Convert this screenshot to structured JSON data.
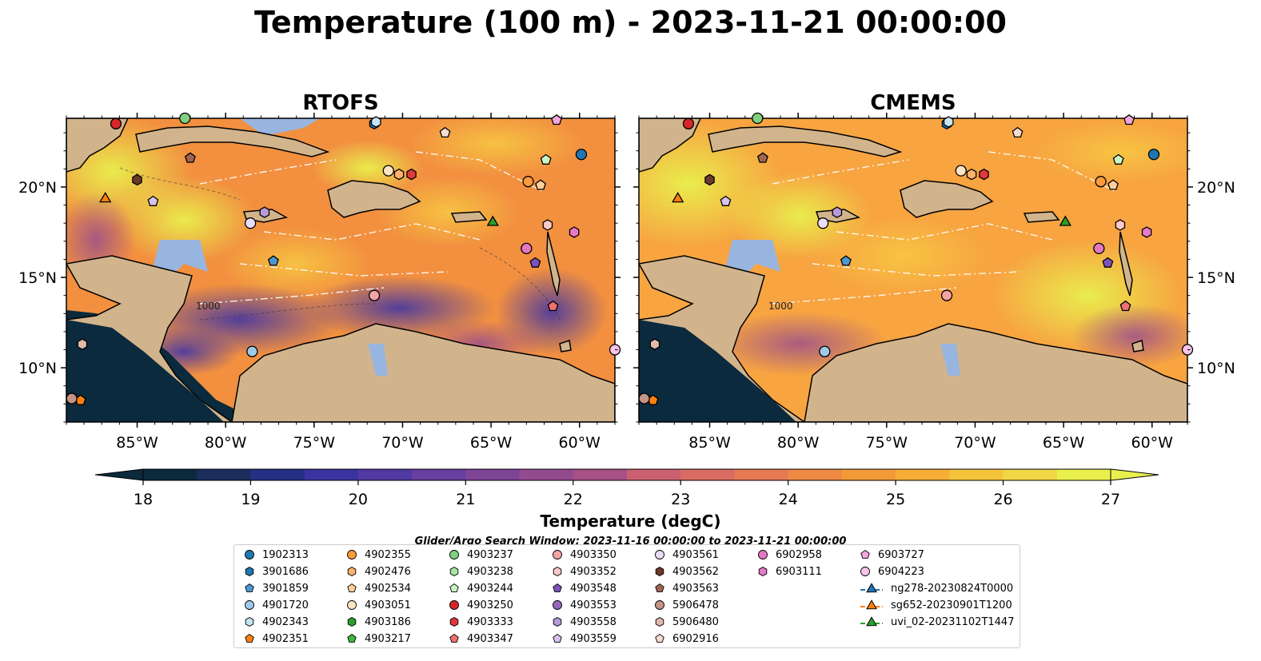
{
  "title": "Temperature (100 m) - 2023-11-21 00:00:00",
  "panels": [
    {
      "title": "RTOFS"
    },
    {
      "title": "CMEMS"
    }
  ],
  "map": {
    "lon_range": [
      -89,
      -58
    ],
    "lat_range": [
      7,
      23.8
    ],
    "lon_ticks": [
      "85°W",
      "80°W",
      "75°W",
      "70°W",
      "65°W",
      "60°W"
    ],
    "lat_ticks": [
      "20°N",
      "15°N",
      "10°N"
    ],
    "land_color": "#d2b48c",
    "shelf_color": "#98b5e0",
    "contour_labels": [
      "1000",
      "1000"
    ]
  },
  "colorbar": {
    "label": "Temperature (degC)",
    "ticks": [
      "18",
      "19",
      "20",
      "21",
      "22",
      "23",
      "24",
      "25",
      "26",
      "27"
    ],
    "min": 18,
    "max": 27,
    "extend": "both",
    "colormap": "thermal"
  },
  "search_window": "Glider/Argo Search Window: 2023-11-16 00:00:00 to 2023-11-21 00:00:00",
  "legend": {
    "items": [
      {
        "label": "1902313",
        "marker": "circle",
        "color": "#1f77b4"
      },
      {
        "label": "3901686",
        "marker": "hexagon",
        "color": "#1f77b4"
      },
      {
        "label": "3901859",
        "marker": "pentagon",
        "color": "#4e97cf"
      },
      {
        "label": "4901720",
        "marker": "circle",
        "color": "#9ecae9"
      },
      {
        "label": "4902343",
        "marker": "hexagon",
        "color": "#c6e4f7"
      },
      {
        "label": "4902351",
        "marker": "pentagon",
        "color": "#ff7f0e"
      },
      {
        "label": "4902355",
        "marker": "circle",
        "color": "#ff9a3c"
      },
      {
        "label": "4902476",
        "marker": "hexagon",
        "color": "#ffb26b"
      },
      {
        "label": "4902534",
        "marker": "pentagon",
        "color": "#ffcf9a"
      },
      {
        "label": "4903051",
        "marker": "circle",
        "color": "#ffe4c4"
      },
      {
        "label": "4903186",
        "marker": "hexagon",
        "color": "#2ca02c"
      },
      {
        "label": "4903217",
        "marker": "pentagon",
        "color": "#3cb83c"
      },
      {
        "label": "4903237",
        "marker": "circle",
        "color": "#7fd17f"
      },
      {
        "label": "4903238",
        "marker": "hexagon",
        "color": "#a8e5a0"
      },
      {
        "label": "4903244",
        "marker": "pentagon",
        "color": "#ccf5c4"
      },
      {
        "label": "4903250",
        "marker": "circle",
        "color": "#d62728"
      },
      {
        "label": "4903333",
        "marker": "hexagon",
        "color": "#e0393b"
      },
      {
        "label": "4903347",
        "marker": "pentagon",
        "color": "#ee7070"
      },
      {
        "label": "4903350",
        "marker": "circle",
        "color": "#f5a3a3"
      },
      {
        "label": "4903352",
        "marker": "hexagon",
        "color": "#fbc8c8"
      },
      {
        "label": "4903548",
        "marker": "pentagon",
        "color": "#7b52b9"
      },
      {
        "label": "4903553",
        "marker": "circle",
        "color": "#9467bd"
      },
      {
        "label": "4903558",
        "marker": "hexagon",
        "color": "#b79ad8"
      },
      {
        "label": "4903559",
        "marker": "pentagon",
        "color": "#d6c2ee"
      },
      {
        "label": "4903561",
        "marker": "circle",
        "color": "#ebdcf8"
      },
      {
        "label": "4903562",
        "marker": "hexagon",
        "color": "#6b3a2a"
      },
      {
        "label": "4903563",
        "marker": "pentagon",
        "color": "#a0654f"
      },
      {
        "label": "5906478",
        "marker": "circle",
        "color": "#c49484"
      },
      {
        "label": "5906480",
        "marker": "hexagon",
        "color": "#e2b8a8"
      },
      {
        "label": "6902916",
        "marker": "pentagon",
        "color": "#f5dccf"
      },
      {
        "label": "6902958",
        "marker": "circle",
        "color": "#e377c2"
      },
      {
        "label": "6903111",
        "marker": "hexagon",
        "color": "#e67ac8"
      },
      {
        "label": "6903727",
        "marker": "pentagon",
        "color": "#f2a5dc"
      },
      {
        "label": "6904223",
        "marker": "circle",
        "color": "#f8c4e8"
      },
      {
        "label": "ng278-20230824T0000",
        "marker": "triangle-line",
        "color": "#1f77b4"
      },
      {
        "label": "sg652-20230901T1200",
        "marker": "triangle-line",
        "color": "#ff7f0e"
      },
      {
        "label": "uvi_02-20231102T1447",
        "marker": "triangle-line",
        "color": "#2ca02c"
      }
    ]
  }
}
